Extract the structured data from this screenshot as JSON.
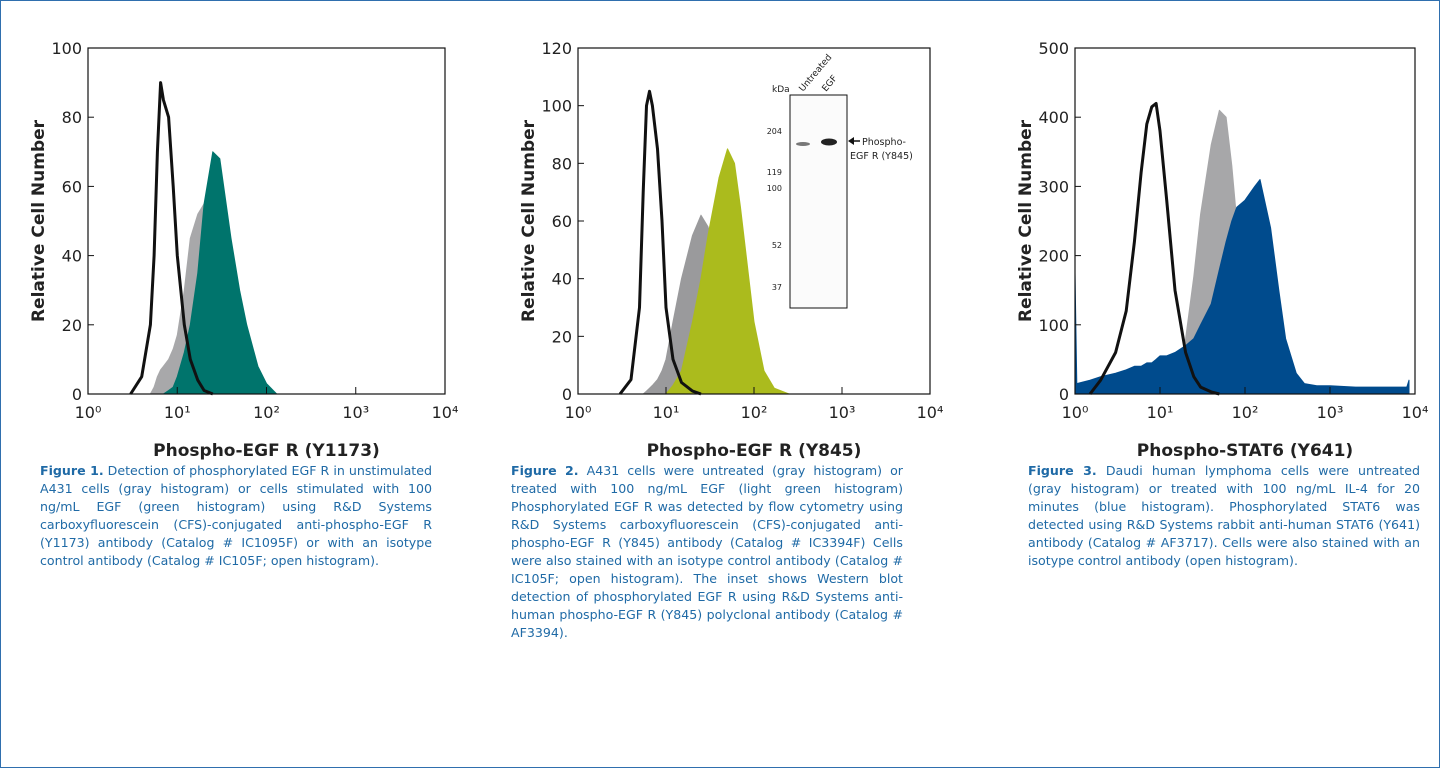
{
  "chart_data": [
    {
      "type": "area",
      "caption_label": "Figure 1.",
      "caption": "Detection of  phosphorylated EGF R in unstimulated A431 cells (gray histogram) or cells stimulated with 100 ng/mL EGF (green histogram) using R&D Systems carboxyfluorescein (CFS)-conjugated anti-phospho-EGF R (Y1173) antibody (Catalog # IC1095F) or with an isotype control antibody (Catalog # IC105F; open histogram).",
      "x_label": "Phospho-EGF R (Y1173)",
      "y_label": "Relative Cell Number",
      "log_x": true,
      "xlim": [
        1,
        10000
      ],
      "xticks": [
        {
          "value": 1,
          "label": "10⁰"
        },
        {
          "value": 10,
          "label": "10¹"
        },
        {
          "value": 100,
          "label": "10²"
        },
        {
          "value": 1000,
          "label": "10³"
        },
        {
          "value": 10000,
          "label": "10⁴"
        }
      ],
      "ylim": [
        0,
        100
      ],
      "yticks": [
        0,
        20,
        40,
        60,
        80,
        100
      ],
      "x": [
        3,
        4,
        5,
        5.5,
        6,
        6.5,
        7,
        8,
        9,
        10,
        12,
        14,
        17,
        20,
        25,
        30,
        40,
        50,
        60,
        80,
        100,
        130
      ],
      "series": [
        {
          "color": "#a8a8aa",
          "fill": true,
          "values": [
            null,
            null,
            0,
            2,
            5,
            7,
            8,
            10,
            13,
            17,
            30,
            45,
            52,
            55,
            55,
            40,
            25,
            12,
            8,
            4,
            1,
            null
          ]
        },
        {
          "color": "#00746c",
          "fill": true,
          "values": [
            null,
            null,
            null,
            null,
            null,
            null,
            0,
            1,
            2,
            5,
            12,
            20,
            35,
            55,
            70,
            68,
            45,
            30,
            20,
            8,
            3,
            0
          ]
        },
        {
          "color": "#111111",
          "fill": false,
          "values": [
            0,
            5,
            20,
            40,
            70,
            90,
            85,
            80,
            60,
            40,
            20,
            10,
            4,
            1,
            0,
            null,
            null,
            null,
            null,
            null,
            null,
            null
          ]
        }
      ]
    },
    {
      "type": "area",
      "caption_label": "Figure 2.",
      "caption": "A431 cells were untreated (gray histogram) or treated with 100 ng/mL EGF (light green histogram) Phosphorylated EGF R was detected by flow cytometry using R&D Systems carboxyfluorescein (CFS)-conjugated anti-phospho-EGF R (Y845) antibody (Catalog # IC3394F) Cells were also stained with an isotype control antibody (Catalog # IC105F; open histogram). The inset shows Western blot detection of phosphorylated EGF R using R&D Systems anti-human phospho-EGF R (Y845) polyclonal antibody (Catalog # AF3394).",
      "x_label": "Phospho-EGF R (Y845)",
      "y_label": "Relative Cell Number",
      "log_x": true,
      "xlim": [
        1,
        10000
      ],
      "xticks": [
        {
          "value": 1,
          "label": "10⁰"
        },
        {
          "value": 10,
          "label": "10¹"
        },
        {
          "value": 100,
          "label": "10²"
        },
        {
          "value": 1000,
          "label": "10³"
        },
        {
          "value": 10000,
          "label": "10⁴"
        }
      ],
      "ylim": [
        0,
        120
      ],
      "yticks": [
        0,
        20,
        40,
        60,
        80,
        100,
        120
      ],
      "x": [
        3,
        4,
        5,
        5.5,
        6,
        6.5,
        7,
        8,
        9,
        10,
        12,
        15,
        20,
        25,
        30,
        40,
        50,
        60,
        70,
        80,
        100,
        130,
        170,
        250
      ],
      "series": [
        {
          "color": "#9a9a9c",
          "fill": true,
          "values": [
            null,
            null,
            null,
            0,
            1,
            2,
            3,
            5,
            8,
            12,
            25,
            40,
            55,
            62,
            58,
            45,
            30,
            20,
            12,
            8,
            4,
            1,
            0,
            null
          ]
        },
        {
          "color": "#abbb1d",
          "fill": true,
          "values": [
            null,
            null,
            null,
            null,
            null,
            null,
            null,
            null,
            null,
            0,
            3,
            8,
            25,
            40,
            55,
            75,
            85,
            80,
            65,
            50,
            25,
            8,
            2,
            0
          ]
        },
        {
          "color": "#111111",
          "fill": false,
          "values": [
            0,
            5,
            30,
            70,
            100,
            105,
            100,
            85,
            60,
            30,
            12,
            4,
            1,
            0,
            null,
            null,
            null,
            null,
            null,
            null,
            null,
            null,
            null,
            null
          ]
        }
      ],
      "inset": {
        "unit": "kDa",
        "lanes": [
          "Untreated",
          "EGF"
        ],
        "markers": [
          204,
          119,
          100,
          52,
          37
        ],
        "annotation": [
          "Phospho-",
          "EGF R (Y845)"
        ]
      }
    },
    {
      "type": "area",
      "caption_label": "Figure 3.",
      "caption": "Daudi human lymphoma cells were untreated (gray histogram) or treated with 100 ng/mL IL-4 for 20 minutes (blue histogram). Phosphorylated STAT6 was detected using R&D Systems rabbit anti-human STAT6 (Y641) antibody (Catalog # AF3717). Cells were also stained with an isotype control antibody (open histogram).",
      "x_label": "Phospho-STAT6 (Y641)",
      "y_label": "Relative Cell Number",
      "log_x": true,
      "xlim": [
        1,
        10000
      ],
      "xticks": [
        {
          "value": 1,
          "label": "10⁰"
        },
        {
          "value": 10,
          "label": "10¹"
        },
        {
          "value": 100,
          "label": "10²"
        },
        {
          "value": 1000,
          "label": "10³"
        },
        {
          "value": 10000,
          "label": "10⁴"
        }
      ],
      "ylim": [
        0,
        500
      ],
      "yticks": [
        0,
        100,
        200,
        300,
        400,
        500
      ],
      "x": [
        1,
        1.05,
        1.5,
        2,
        3,
        4,
        5,
        6,
        7,
        8,
        9,
        10,
        12,
        15,
        20,
        25,
        30,
        40,
        50,
        60,
        70,
        80,
        100,
        130,
        150,
        200,
        250,
        300,
        400,
        500,
        700,
        1000,
        2000,
        5000,
        8000,
        8500
      ],
      "series": [
        {
          "color": "#a7a7a9",
          "fill": true,
          "values": [
            null,
            null,
            null,
            null,
            null,
            null,
            null,
            null,
            null,
            null,
            null,
            null,
            0,
            20,
            80,
            170,
            260,
            360,
            410,
            400,
            330,
            250,
            150,
            70,
            40,
            10,
            0,
            null,
            null,
            null,
            null,
            null,
            null,
            null,
            null,
            null
          ]
        },
        {
          "color": "#004b8d",
          "fill": true,
          "values": [
            175,
            15,
            20,
            25,
            30,
            35,
            40,
            40,
            45,
            45,
            50,
            55,
            55,
            60,
            70,
            80,
            100,
            130,
            180,
            220,
            250,
            270,
            280,
            300,
            310,
            240,
            150,
            80,
            30,
            15,
            12,
            12,
            10,
            10,
            10,
            20
          ]
        },
        {
          "color": "#111111",
          "fill": false,
          "values": [
            null,
            null,
            0,
            20,
            60,
            120,
            220,
            320,
            390,
            415,
            420,
            380,
            280,
            150,
            60,
            25,
            10,
            3,
            0,
            null,
            null,
            null,
            null,
            null,
            null,
            null,
            null,
            null,
            null,
            null,
            null,
            null,
            null,
            null,
            null,
            null
          ]
        }
      ]
    }
  ]
}
